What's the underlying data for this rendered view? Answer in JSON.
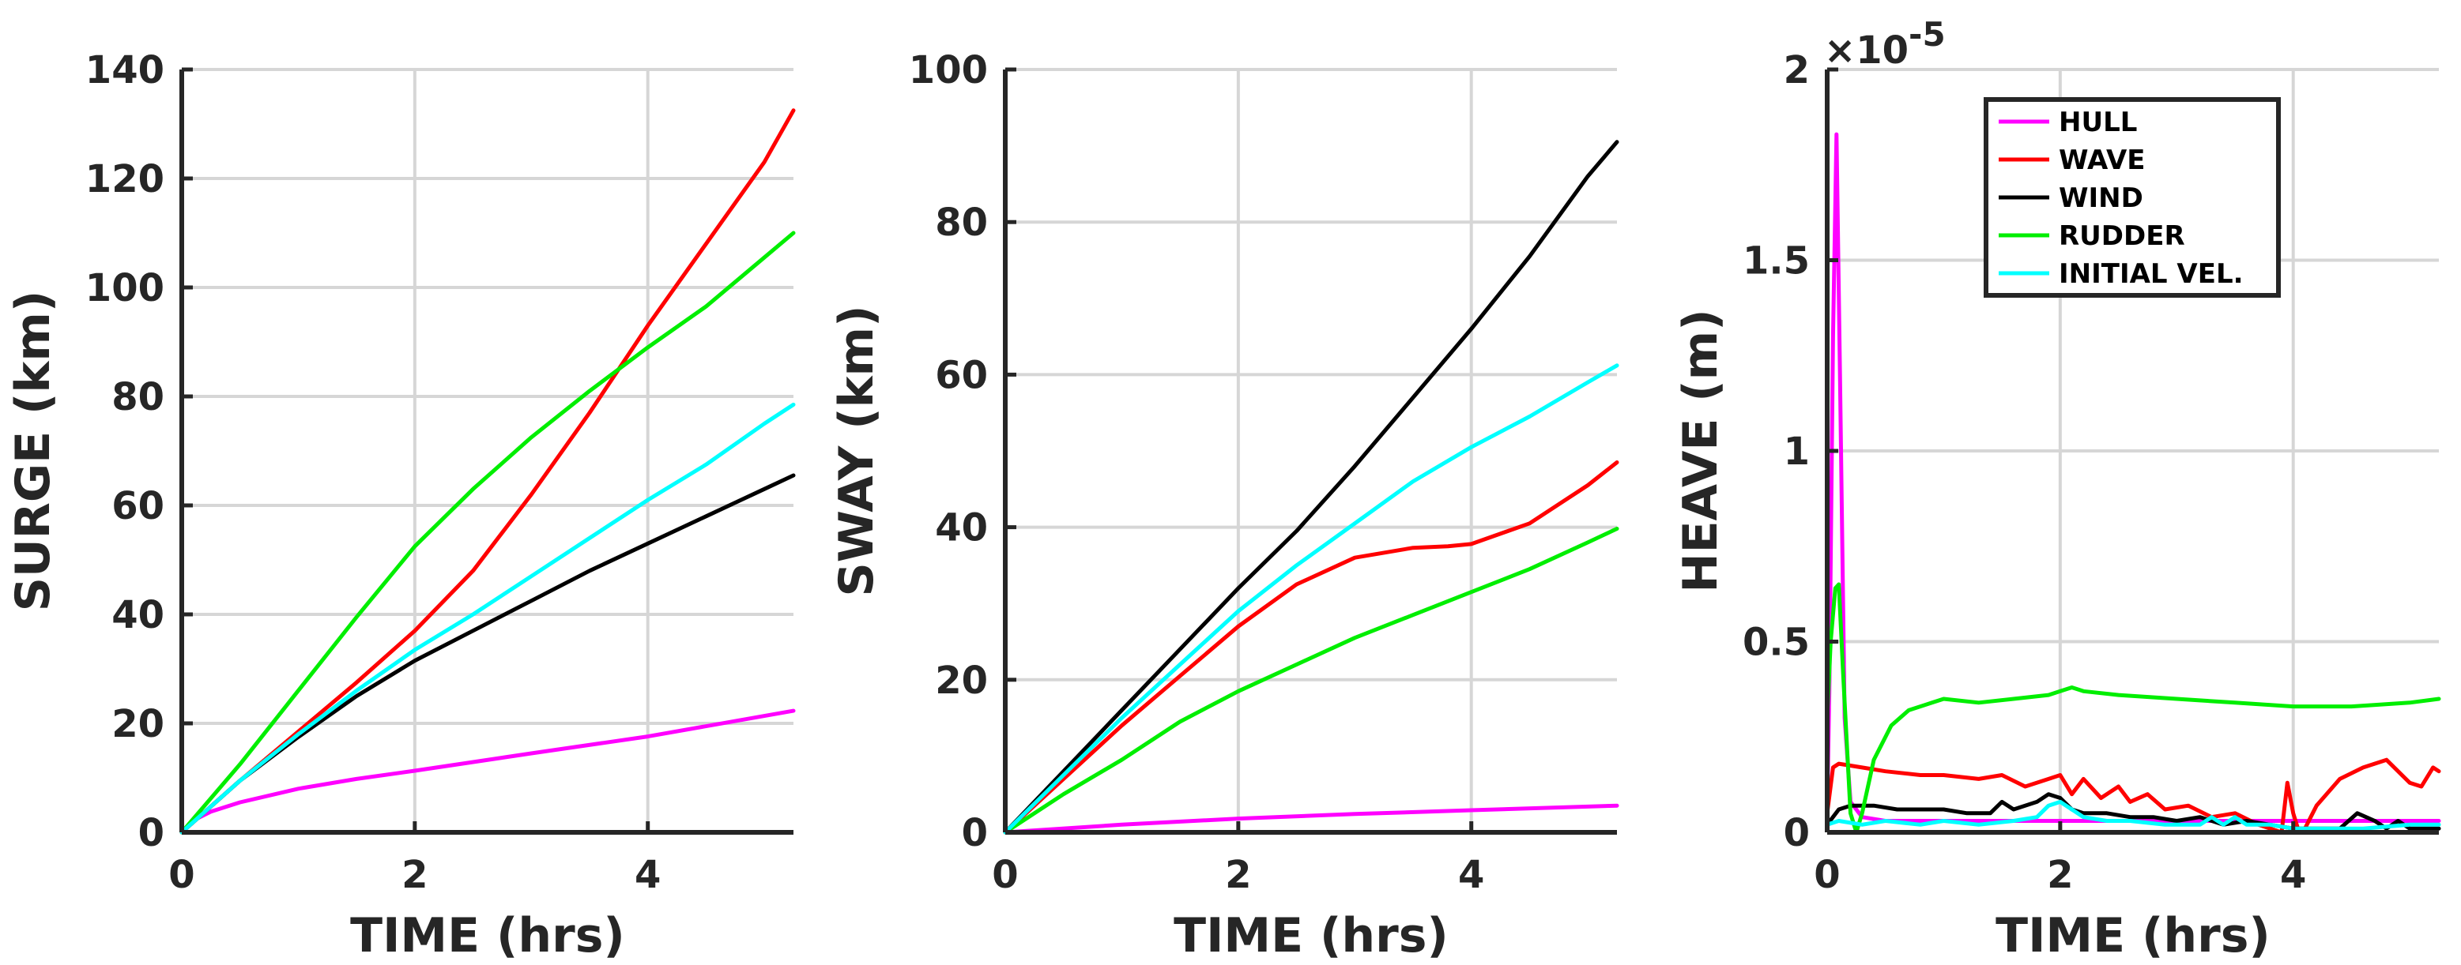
{
  "chart_data": [
    {
      "type": "line",
      "xlabel": "TIME (hrs)",
      "ylabel": "SURGE (km)",
      "xlim": [
        0,
        5.25
      ],
      "ylim": [
        0,
        140
      ],
      "xticks": [
        0,
        2,
        4
      ],
      "yticks": [
        0,
        20,
        40,
        60,
        80,
        100,
        120,
        140
      ],
      "grid": true,
      "series": [
        {
          "name": "HULL",
          "color": "#ff00ff",
          "x": [
            0,
            0.1,
            0.25,
            0.5,
            1,
            1.5,
            2,
            3,
            4,
            5.25
          ],
          "values": [
            0,
            2.2,
            3.8,
            5.5,
            8,
            9.8,
            11.3,
            14.5,
            17.6,
            22.3
          ]
        },
        {
          "name": "WAVE",
          "color": "#ff0000",
          "x": [
            0,
            0.5,
            1,
            1.5,
            2,
            2.5,
            3,
            3.5,
            4,
            4.5,
            5,
            5.25
          ],
          "values": [
            0,
            9.5,
            18.5,
            27.5,
            37,
            48,
            62,
            77,
            93,
            108,
            123,
            132.5
          ]
        },
        {
          "name": "WIND",
          "color": "#000000",
          "x": [
            0,
            0.5,
            1,
            1.5,
            2,
            2.5,
            3,
            3.5,
            4,
            4.5,
            5,
            5.25
          ],
          "values": [
            0,
            9.5,
            17.5,
            25,
            31.5,
            37,
            42.5,
            48,
            53,
            58,
            63,
            65.5
          ]
        },
        {
          "name": "RUDDER",
          "color": "#00ee00",
          "x": [
            0,
            0.5,
            1,
            1.5,
            2,
            2.5,
            3,
            3.5,
            4,
            4.5,
            5,
            5.25
          ],
          "values": [
            0,
            12.5,
            26,
            39.5,
            52.5,
            63,
            72.5,
            81,
            89,
            96.5,
            105.5,
            110
          ]
        },
        {
          "name": "INITIAL VEL.",
          "color": "#00ffff",
          "x": [
            0,
            0.5,
            1,
            1.5,
            2,
            2.5,
            3,
            3.5,
            4,
            4.5,
            5,
            5.25
          ],
          "values": [
            0,
            9.5,
            18,
            26,
            33.5,
            40,
            47,
            54,
            61,
            67.5,
            75,
            78.5
          ]
        }
      ]
    },
    {
      "type": "line",
      "xlabel": "TIME (hrs)",
      "ylabel": "SWAY (km)",
      "xlim": [
        0,
        5.25
      ],
      "ylim": [
        0,
        100
      ],
      "xticks": [
        0,
        2,
        4
      ],
      "yticks": [
        0,
        20,
        40,
        60,
        80,
        100
      ],
      "grid": true,
      "series": [
        {
          "name": "HULL",
          "color": "#ff00ff",
          "x": [
            0,
            1,
            2,
            3,
            4,
            5.25
          ],
          "values": [
            0,
            1,
            1.8,
            2.4,
            2.9,
            3.5
          ]
        },
        {
          "name": "WAVE",
          "color": "#ff0000",
          "x": [
            0,
            0.5,
            1,
            1.5,
            2,
            2.5,
            3,
            3.5,
            3.8,
            4,
            4.5,
            5,
            5.25
          ],
          "values": [
            0,
            7,
            14,
            20.5,
            27,
            32.5,
            36,
            37.3,
            37.5,
            37.8,
            40.5,
            45.5,
            48.5
          ]
        },
        {
          "name": "WIND",
          "color": "#000000",
          "x": [
            0,
            0.5,
            1,
            1.5,
            2,
            2.5,
            3,
            3.5,
            4,
            4.5,
            5,
            5.25
          ],
          "values": [
            0,
            8,
            16,
            24,
            32,
            39.5,
            48,
            57,
            66,
            75.5,
            86,
            90.5
          ]
        },
        {
          "name": "RUDDER",
          "color": "#00ee00",
          "x": [
            0,
            0.5,
            1,
            1.5,
            2,
            2.5,
            3,
            3.5,
            4,
            4.5,
            5,
            5.25
          ],
          "values": [
            0,
            5,
            9.5,
            14.5,
            18.5,
            22,
            25.5,
            28.5,
            31.5,
            34.5,
            38,
            39.8
          ]
        },
        {
          "name": "INITIAL VEL.",
          "color": "#00ffff",
          "x": [
            0,
            0.5,
            1,
            1.5,
            2,
            2.5,
            3,
            3.5,
            4,
            4.5,
            5,
            5.25
          ],
          "values": [
            0,
            7.5,
            15,
            22,
            29,
            35,
            40.5,
            46,
            50.5,
            54.5,
            59,
            61.2
          ]
        }
      ]
    },
    {
      "type": "line",
      "xlabel": "TIME (hrs)",
      "ylabel": "HEAVE (m)",
      "y_multiplier": "×10",
      "y_exponent": "-5",
      "xlim": [
        0,
        5.25
      ],
      "ylim": [
        0,
        2
      ],
      "xticks": [
        0,
        2,
        4
      ],
      "yticks": [
        0,
        0.5,
        1,
        1.5,
        2
      ],
      "ytick_labels": [
        "0",
        "0.5",
        "1",
        "1.5",
        "2"
      ],
      "grid": true,
      "legend": {
        "location": "top-center",
        "entries": [
          "HULL",
          "WAVE",
          "WIND",
          "RUDDER",
          "INITIAL VEL."
        ]
      },
      "series": [
        {
          "name": "HULL",
          "color": "#ff00ff",
          "x": [
            0,
            0.02,
            0.05,
            0.08,
            0.11,
            0.15,
            0.2,
            0.3,
            0.5,
            1,
            1.5,
            2,
            2.5,
            3,
            3.5,
            4,
            4.5,
            5,
            5.25
          ],
          "values": [
            0.05,
            0.4,
            1.3,
            1.83,
            1.2,
            0.3,
            0.08,
            0.04,
            0.03,
            0.03,
            0.03,
            0.03,
            0.03,
            0.03,
            0.03,
            0.03,
            0.03,
            0.03,
            0.03
          ]
        },
        {
          "name": "WAVE",
          "color": "#ff0000",
          "x": [
            0,
            0.05,
            0.1,
            0.3,
            0.5,
            0.8,
            1,
            1.3,
            1.5,
            1.7,
            1.9,
            2.0,
            2.1,
            2.2,
            2.35,
            2.5,
            2.6,
            2.75,
            2.9,
            3.1,
            3.3,
            3.5,
            3.7,
            3.9,
            3.95,
            4.0,
            4.05,
            4.1,
            4.2,
            4.4,
            4.6,
            4.8,
            5.0,
            5.1,
            5.2,
            5.25
          ],
          "values": [
            0.05,
            0.17,
            0.18,
            0.17,
            0.16,
            0.15,
            0.15,
            0.14,
            0.15,
            0.12,
            0.14,
            0.15,
            0.1,
            0.14,
            0.09,
            0.12,
            0.08,
            0.1,
            0.06,
            0.07,
            0.04,
            0.05,
            0.02,
            0.0,
            0.13,
            0.05,
            0.0,
            0.01,
            0.07,
            0.14,
            0.17,
            0.19,
            0.13,
            0.12,
            0.17,
            0.16
          ]
        },
        {
          "name": "WIND",
          "color": "#000000",
          "x": [
            0,
            0.1,
            0.2,
            0.4,
            0.6,
            0.8,
            1,
            1.2,
            1.4,
            1.5,
            1.6,
            1.8,
            1.9,
            2.0,
            2.1,
            2.2,
            2.4,
            2.6,
            2.8,
            3.0,
            3.2,
            3.4,
            3.6,
            3.8,
            4.0,
            4.2,
            4.4,
            4.55,
            4.7,
            4.8,
            4.9,
            5.0,
            5.25
          ],
          "values": [
            0.02,
            0.06,
            0.07,
            0.07,
            0.06,
            0.06,
            0.06,
            0.05,
            0.05,
            0.08,
            0.06,
            0.08,
            0.1,
            0.09,
            0.06,
            0.05,
            0.05,
            0.04,
            0.04,
            0.03,
            0.04,
            0.02,
            0.03,
            0.02,
            0.01,
            0.01,
            0.01,
            0.05,
            0.03,
            0.01,
            0.03,
            0.01,
            0.01
          ]
        },
        {
          "name": "RUDDER",
          "color": "#00ee00",
          "x": [
            0,
            0.03,
            0.07,
            0.1,
            0.14,
            0.2,
            0.25,
            0.3,
            0.4,
            0.55,
            0.7,
            0.9,
            1,
            1.3,
            1.6,
            1.9,
            2.0,
            2.1,
            2.2,
            2.5,
            3,
            3.5,
            4,
            4.5,
            5,
            5.25
          ],
          "values": [
            0.3,
            0.5,
            0.64,
            0.65,
            0.4,
            0.05,
            0.0,
            0.05,
            0.19,
            0.28,
            0.32,
            0.34,
            0.35,
            0.34,
            0.35,
            0.36,
            0.37,
            0.38,
            0.37,
            0.36,
            0.35,
            0.34,
            0.33,
            0.33,
            0.34,
            0.35
          ]
        },
        {
          "name": "INITIAL VEL.",
          "color": "#00ffff",
          "x": [
            0,
            0.1,
            0.3,
            0.5,
            0.8,
            1,
            1.3,
            1.6,
            1.8,
            1.9,
            2.0,
            2.1,
            2.2,
            2.4,
            2.6,
            2.9,
            3.2,
            3.3,
            3.4,
            3.5,
            3.6,
            3.8,
            4.0,
            4.3,
            4.6,
            5.0,
            5.25
          ],
          "values": [
            0.02,
            0.03,
            0.02,
            0.03,
            0.02,
            0.03,
            0.02,
            0.03,
            0.04,
            0.07,
            0.08,
            0.06,
            0.04,
            0.03,
            0.03,
            0.02,
            0.02,
            0.04,
            0.02,
            0.04,
            0.02,
            0.02,
            0.01,
            0.01,
            0.01,
            0.02,
            0.02
          ]
        }
      ]
    }
  ]
}
